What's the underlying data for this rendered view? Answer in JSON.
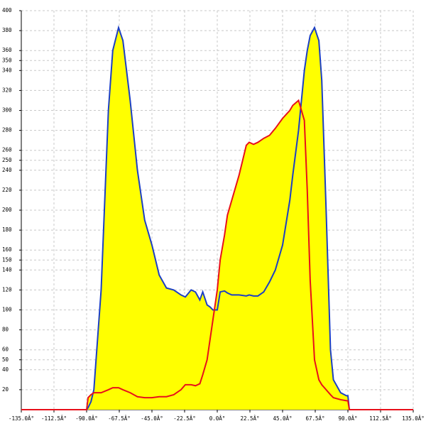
{
  "chart_data": {
    "type": "area",
    "fill": "#ffff00",
    "grid": true,
    "xlim": [
      -135,
      135
    ],
    "ylim": [
      0,
      400
    ],
    "xticks": [
      {
        "value": -135,
        "label": "-135.0Â°"
      },
      {
        "value": -112.5,
        "label": "-112.5Â°"
      },
      {
        "value": -90,
        "label": "-90.0Â°"
      },
      {
        "value": -67.5,
        "label": "-67.5Â°"
      },
      {
        "value": -45,
        "label": "-45.0Â°"
      },
      {
        "value": -22.5,
        "label": "-22.5Â°"
      },
      {
        "value": 0,
        "label": "0.0Â°"
      },
      {
        "value": 22.5,
        "label": "22.5Â°"
      },
      {
        "value": 45,
        "label": "45.0Â°"
      },
      {
        "value": 67.5,
        "label": "67.5Â°"
      },
      {
        "value": 90,
        "label": "90.0Â°"
      },
      {
        "value": 112.5,
        "label": "112.5Â°"
      },
      {
        "value": 135,
        "label": "135.0Â°"
      }
    ],
    "yticks": [
      20,
      40,
      50,
      60,
      80,
      100,
      120,
      140,
      150,
      160,
      180,
      200,
      220,
      240,
      250,
      260,
      280,
      300,
      320,
      340,
      350,
      360,
      380,
      400
    ],
    "x": [
      -135,
      -90,
      -89,
      -87,
      -85,
      -80,
      -75,
      -72,
      -68,
      -65,
      -60,
      -55,
      -50,
      -45,
      -40,
      -35,
      -30,
      -25,
      -22,
      -18,
      -15,
      -12,
      -10,
      -7,
      -5,
      -3,
      0,
      2,
      5,
      7,
      10,
      15,
      20,
      22,
      25,
      28,
      32,
      36,
      40,
      45,
      50,
      52,
      56,
      60,
      62,
      64,
      67,
      70,
      72,
      75,
      78,
      80,
      85,
      89,
      90,
      91,
      135
    ],
    "series": [
      {
        "color": "#1c3fc4",
        "values": [
          0,
          0,
          2,
          8,
          20,
          120,
          300,
          360,
          383,
          370,
          310,
          240,
          190,
          165,
          135,
          122,
          120,
          115,
          113,
          120,
          118,
          110,
          118,
          105,
          103,
          100,
          100,
          118,
          119,
          117,
          115,
          115,
          114,
          115,
          114,
          114,
          118,
          128,
          140,
          165,
          210,
          235,
          280,
          340,
          360,
          375,
          383,
          370,
          330,
          200,
          60,
          30,
          17,
          14,
          14,
          0,
          0
        ]
      },
      {
        "color": "#e8101a",
        "values": [
          0,
          0,
          12,
          15,
          17,
          17,
          20,
          22,
          22,
          20,
          17,
          13,
          12,
          12,
          13,
          13,
          15,
          20,
          25,
          25,
          24,
          26,
          35,
          50,
          70,
          90,
          120,
          150,
          175,
          195,
          210,
          235,
          265,
          268,
          266,
          268,
          272,
          275,
          282,
          292,
          300,
          305,
          310,
          290,
          220,
          130,
          50,
          30,
          25,
          20,
          15,
          12,
          10,
          9,
          9,
          0,
          0
        ]
      }
    ]
  }
}
